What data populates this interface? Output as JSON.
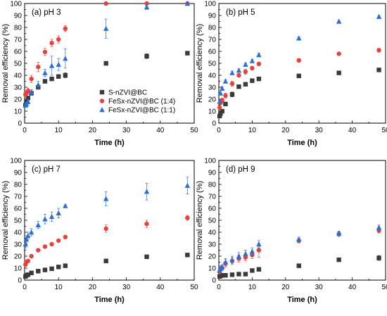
{
  "legend": [
    {
      "name": "S-nZVI@BC",
      "marker": "square",
      "color": "#3a3a3a"
    },
    {
      "name": "FeSx-nZVI@BC (1:4)",
      "marker": "circle",
      "color": "#e8413c"
    },
    {
      "name": "FeSx-nZVI@BC (1:1)",
      "marker": "triangle",
      "color": "#2b6fd6"
    }
  ],
  "chart_data": [
    {
      "type": "scatter",
      "panel_label": "(a) pH 3",
      "xlabel": "Time (h)",
      "ylabel": "Removal efficiency (%)",
      "xlim": [
        0,
        50
      ],
      "ylim": [
        0,
        100
      ],
      "xticks": [
        0,
        10,
        20,
        30,
        40,
        50
      ],
      "yticks": [
        0,
        10,
        20,
        30,
        40,
        50,
        60,
        70,
        80,
        90,
        100
      ],
      "legend_position": "bottom-center",
      "x": [
        0.25,
        0.5,
        1,
        2,
        4,
        6,
        8,
        10,
        12,
        24,
        36,
        48
      ],
      "series": [
        {
          "name": "S-nZVI@BC",
          "values": [
            15,
            18,
            21,
            25,
            30,
            35,
            37,
            39,
            40,
            50,
            56,
            58.5
          ],
          "errors": [
            1,
            1,
            1,
            1.5,
            1.5,
            1.5,
            1.5,
            1.5,
            2,
            1.5,
            2,
            1.5
          ]
        },
        {
          "name": "FeSx-nZVI@BC (1:4)",
          "values": [
            24,
            25,
            27,
            37,
            47,
            59.5,
            67,
            70,
            79,
            100,
            100,
            100
          ],
          "errors": [
            2,
            2,
            2,
            3,
            4,
            3,
            3,
            3,
            2.5,
            1,
            1,
            1
          ]
        },
        {
          "name": "FeSx-nZVI@BC (1:1)",
          "values": [
            15,
            16,
            18,
            26,
            32,
            42,
            48,
            49,
            54,
            79,
            97,
            100
          ],
          "errors": [
            1.5,
            1.5,
            2,
            2,
            3,
            3,
            8,
            5,
            8,
            8,
            2,
            1
          ]
        }
      ]
    },
    {
      "type": "scatter",
      "panel_label": "(b) pH 5",
      "xlabel": "Time (h)",
      "ylabel": "Removal efficiency (%)",
      "xlim": [
        0,
        50
      ],
      "ylim": [
        0,
        100
      ],
      "xticks": [
        0,
        10,
        20,
        30,
        40,
        50
      ],
      "yticks": [
        0,
        10,
        20,
        30,
        40,
        50,
        60,
        70,
        80,
        90,
        100
      ],
      "x": [
        0.25,
        0.5,
        1,
        2,
        4,
        6,
        8,
        10,
        12,
        24,
        36,
        48
      ],
      "series": [
        {
          "name": "S-nZVI@BC",
          "values": [
            6,
            8,
            10,
            16,
            24,
            30.5,
            32.5,
            35.5,
            37,
            39.5,
            42,
            44.5
          ],
          "errors": [
            0.8,
            0.8,
            0.8,
            1,
            2,
            1.2,
            1,
            1,
            1,
            1,
            1.5,
            1.5
          ]
        },
        {
          "name": "FeSx-nZVI@BC (1:4)",
          "values": [
            13,
            17,
            19,
            23,
            33,
            40,
            43,
            46,
            49.5,
            52.5,
            58,
            61
          ],
          "errors": [
            1.5,
            1.5,
            2,
            2,
            2,
            1.5,
            2,
            1.5,
            1.5,
            1.5,
            1,
            1.5
          ]
        },
        {
          "name": "FeSx-nZVI@BC (1:1)",
          "values": [
            18,
            25,
            29,
            35,
            42,
            44,
            49,
            52,
            57,
            71,
            85,
            89
          ],
          "errors": [
            1.5,
            1.5,
            1.5,
            1.5,
            1.5,
            1.5,
            1.5,
            1.5,
            1.5,
            1,
            1,
            1
          ]
        }
      ]
    },
    {
      "type": "scatter",
      "panel_label": "(c) pH 7",
      "xlabel": "Time (h)",
      "ylabel": "Removal efficiency (%)",
      "xlim": [
        0,
        50
      ],
      "ylim": [
        0,
        100
      ],
      "xticks": [
        0,
        10,
        20,
        30,
        40,
        50
      ],
      "yticks": [
        0,
        10,
        20,
        30,
        40,
        50,
        60,
        70,
        80,
        90,
        100
      ],
      "x": [
        0.25,
        0.5,
        1,
        2,
        4,
        6,
        8,
        10,
        12,
        24,
        36,
        48
      ],
      "series": [
        {
          "name": "S-nZVI@BC",
          "values": [
            3,
            4,
            4.5,
            6,
            7.5,
            8.5,
            9.5,
            11,
            12,
            16,
            19.5,
            21
          ],
          "errors": [
            0.5,
            0.5,
            0.5,
            0.5,
            0.5,
            0.5,
            0.5,
            0.5,
            0.5,
            0.8,
            1,
            1
          ]
        },
        {
          "name": "FeSx-nZVI@BC (1:4)",
          "values": [
            13,
            15,
            16,
            20,
            25,
            28,
            30,
            33,
            36,
            43,
            47,
            52
          ],
          "errors": [
            1,
            1,
            1,
            1,
            1,
            1,
            1,
            1,
            1,
            3,
            3,
            2
          ]
        },
        {
          "name": "FeSx-nZVI@BC (1:1)",
          "values": [
            30,
            34,
            37,
            40,
            46,
            51,
            53,
            56,
            62,
            68,
            74,
            79
          ],
          "errors": [
            3,
            3,
            3,
            3,
            3,
            4,
            4,
            4,
            1,
            6,
            7,
            7
          ]
        }
      ]
    },
    {
      "type": "scatter",
      "panel_label": "(d) pH 9",
      "xlabel": "Time (h)",
      "ylabel": "Removal efficiency (%)",
      "xlim": [
        0,
        50
      ],
      "ylim": [
        0,
        100
      ],
      "xticks": [
        0,
        10,
        20,
        30,
        40,
        50
      ],
      "yticks": [
        0,
        10,
        20,
        30,
        40,
        50,
        60,
        70,
        80,
        90,
        100
      ],
      "x": [
        0.25,
        0.5,
        1,
        2,
        4,
        6,
        8,
        10,
        12,
        24,
        36,
        48
      ],
      "series": [
        {
          "name": "S-nZVI@BC",
          "values": [
            3,
            3.5,
            4,
            4,
            4.5,
            5,
            5,
            8,
            9,
            12,
            17,
            18.5
          ],
          "errors": [
            1,
            1,
            1,
            1,
            1,
            1.5,
            1.5,
            1.5,
            1.5,
            1,
            1.5,
            2
          ]
        },
        {
          "name": "FeSx-nZVI@BC (1:4)",
          "values": [
            7,
            9,
            10,
            14,
            16,
            18,
            19,
            21,
            25,
            33,
            38.5,
            41.5
          ],
          "errors": [
            2,
            2,
            2,
            3,
            3,
            3,
            3,
            3,
            6,
            2,
            2,
            2
          ]
        },
        {
          "name": "FeSx-nZVI@BC (1:1)",
          "values": [
            8,
            10,
            11,
            15,
            17,
            20,
            22,
            24,
            30,
            34,
            39,
            44
          ],
          "errors": [
            2,
            2,
            2,
            3,
            3,
            3,
            3,
            3,
            3,
            2,
            2,
            2
          ]
        }
      ]
    }
  ]
}
